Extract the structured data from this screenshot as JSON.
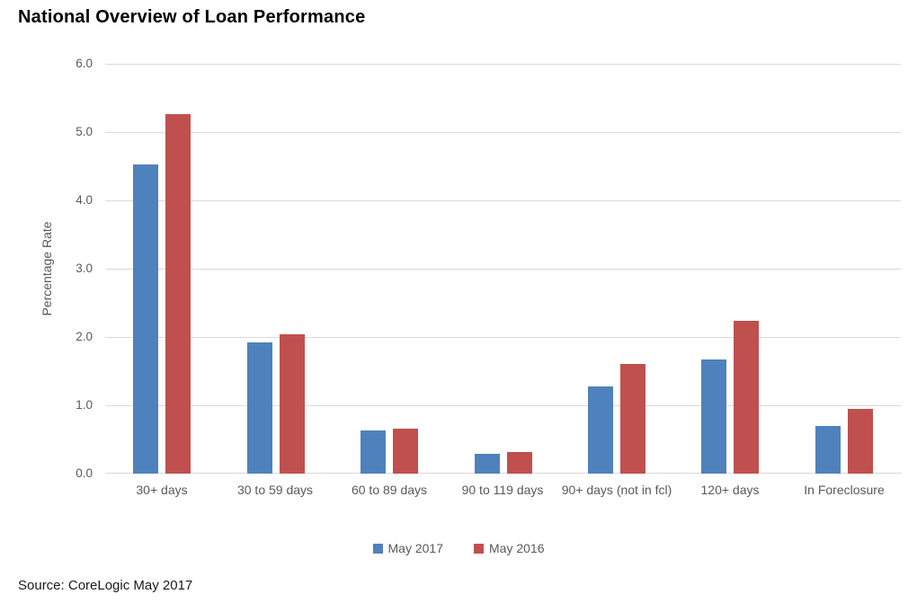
{
  "title": "National Overview of Loan Performance",
  "source": {
    "text": "Source: CoreLogic May 2017"
  },
  "colors": {
    "series_2017": "#4F81BD",
    "series_2016": "#C0504D",
    "gridline": "#D9D9D9",
    "axis_text": "#595959",
    "title_text": "#000000"
  },
  "chart_data": {
    "type": "bar",
    "title": "National Overview of Loan Performance",
    "categories": [
      "30+ days",
      "30 to 59 days",
      "60 to 89 days",
      "90 to 119 days",
      "90+ days (not in fcl)",
      "120+ days",
      "In Foreclosure"
    ],
    "series": [
      {
        "name": "May 2017",
        "color": "#4F81BD",
        "values": [
          4.53,
          1.92,
          0.63,
          0.29,
          1.28,
          1.67,
          0.7
        ]
      },
      {
        "name": "May 2016",
        "color": "#C0504D",
        "values": [
          5.26,
          2.04,
          0.66,
          0.31,
          1.6,
          2.24,
          0.95
        ]
      }
    ],
    "xlabel": "",
    "ylabel": "Percentage Rate",
    "ylim": [
      0,
      6
    ],
    "ytick_step": 1.0,
    "ytick_labels": [
      "0.0",
      "1.0",
      "2.0",
      "3.0",
      "4.0",
      "5.0",
      "6.0"
    ],
    "grid": "horizontal",
    "legend_position": "bottom"
  }
}
